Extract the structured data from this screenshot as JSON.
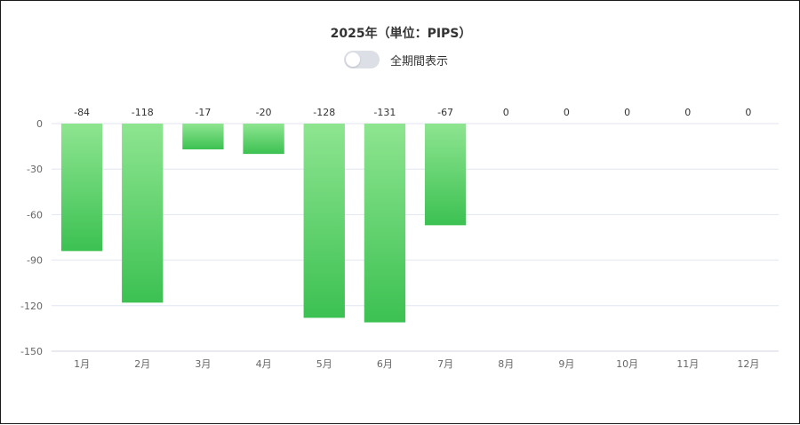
{
  "chart_data": {
    "type": "bar",
    "title": "2025年（単位：PIPS）",
    "categories": [
      "1月",
      "2月",
      "3月",
      "4月",
      "5月",
      "6月",
      "7月",
      "8月",
      "9月",
      "10月",
      "11月",
      "12月"
    ],
    "values": [
      -84,
      -118,
      -17,
      -20,
      -128,
      -131,
      -67,
      0,
      0,
      0,
      0,
      0
    ],
    "data_labels": [
      "-84",
      "-118",
      "-17",
      "-20",
      "-128",
      "-131",
      "-67",
      "0",
      "0",
      "0",
      "0",
      "0"
    ],
    "yticks": [
      "0",
      "-30",
      "-60",
      "-90",
      "-120",
      "-150"
    ],
    "ylim": [
      -150,
      0
    ],
    "grid": true,
    "xlabel": "",
    "ylabel": "",
    "colors": {
      "bar_top": "#8ee590",
      "bar_bottom": "#3cc152",
      "grid": "#e0e6f1"
    }
  },
  "toggle": {
    "label": "全期間表示",
    "on": false
  }
}
